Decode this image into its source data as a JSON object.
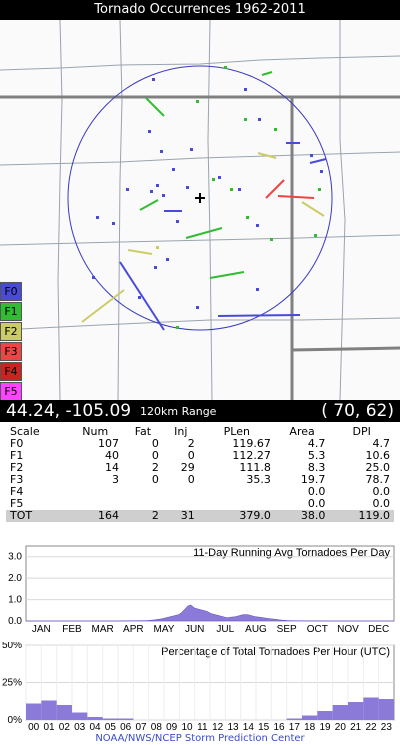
{
  "title": "Tornado Occurrences 1962-2011",
  "legend": [
    {
      "label": "F0",
      "color": "#4a4ad8"
    },
    {
      "label": "F1",
      "color": "#33bb33"
    },
    {
      "label": "F2",
      "color": "#cccc66"
    },
    {
      "label": "F3",
      "color": "#ee4444"
    },
    {
      "label": "F4",
      "color": "#cc2222"
    },
    {
      "label": "F5",
      "color": "#ff44ff"
    }
  ],
  "info": {
    "coords": "44.24, -105.09",
    "range": "120km Range",
    "grid_cell": "( 70,  62)"
  },
  "stats": {
    "headers": [
      "Scale",
      "Num",
      "Fat",
      "Inj",
      "PLen",
      "Area",
      "DPI"
    ],
    "rows": [
      [
        "F0",
        "107",
        "0",
        "2",
        "119.67",
        "4.7",
        "4.7"
      ],
      [
        "F1",
        "40",
        "0",
        "0",
        "112.27",
        "5.3",
        "10.6"
      ],
      [
        "F2",
        "14",
        "2",
        "29",
        "111.8",
        "8.3",
        "25.0"
      ],
      [
        "F3",
        "3",
        "0",
        "0",
        "35.3",
        "19.7",
        "78.7"
      ],
      [
        "F4",
        "",
        "",
        "",
        "",
        "0.0",
        "0.0"
      ],
      [
        "F5",
        "",
        "",
        "",
        "",
        "0.0",
        "0.0"
      ]
    ],
    "total": [
      "TOT",
      "164",
      "2",
      "31",
      "379.0",
      "38.0",
      "119.0"
    ]
  },
  "footer": "NOAA/NWS/NCEP Storm Prediction Center",
  "chart_data": [
    {
      "type": "area",
      "title": "11-Day Running Avg Tornadoes Per Day",
      "ylim": [
        0,
        3.5
      ],
      "yticks": [
        "0.0",
        "1.0",
        "2.0",
        "3.0"
      ],
      "categories": [
        "JAN",
        "FEB",
        "MAR",
        "APR",
        "MAY",
        "JUN",
        "JUL",
        "AUG",
        "SEP",
        "OCT",
        "NOV",
        "DEC"
      ],
      "x": [
        1,
        32,
        60,
        91,
        121,
        128,
        135,
        142,
        148,
        152,
        155,
        158,
        161,
        164,
        168,
        172,
        176,
        180,
        184,
        188,
        192,
        196,
        200,
        204,
        208,
        212,
        216,
        220,
        224,
        228,
        232,
        236,
        240,
        244,
        248,
        252,
        260,
        270,
        300,
        365
      ],
      "values": [
        0,
        0,
        0,
        0,
        0.02,
        0.05,
        0.1,
        0.18,
        0.25,
        0.3,
        0.4,
        0.55,
        0.7,
        0.75,
        0.6,
        0.55,
        0.5,
        0.45,
        0.35,
        0.3,
        0.25,
        0.2,
        0.15,
        0.18,
        0.2,
        0.25,
        0.3,
        0.3,
        0.25,
        0.2,
        0.18,
        0.15,
        0.12,
        0.1,
        0.08,
        0.05,
        0.02,
        0.01,
        0,
        0
      ],
      "color": "#8c7ad8"
    },
    {
      "type": "bar",
      "title": "Percentage of Total Tornadoes Per Hour (UTC)",
      "ylim": [
        0,
        50
      ],
      "yticks": [
        "0%",
        "25%",
        "50%"
      ],
      "categories": [
        "00",
        "01",
        "02",
        "03",
        "04",
        "05",
        "06",
        "07",
        "08",
        "09",
        "10",
        "11",
        "12",
        "13",
        "14",
        "15",
        "16",
        "17",
        "18",
        "19",
        "20",
        "21",
        "22",
        "23"
      ],
      "values": [
        11,
        13,
        10,
        5,
        2,
        1,
        1,
        0,
        0,
        0,
        0,
        0,
        0,
        0,
        0,
        0,
        0,
        1,
        3,
        6,
        10,
        12,
        15,
        14
      ],
      "color": "#8c7ad8"
    }
  ]
}
